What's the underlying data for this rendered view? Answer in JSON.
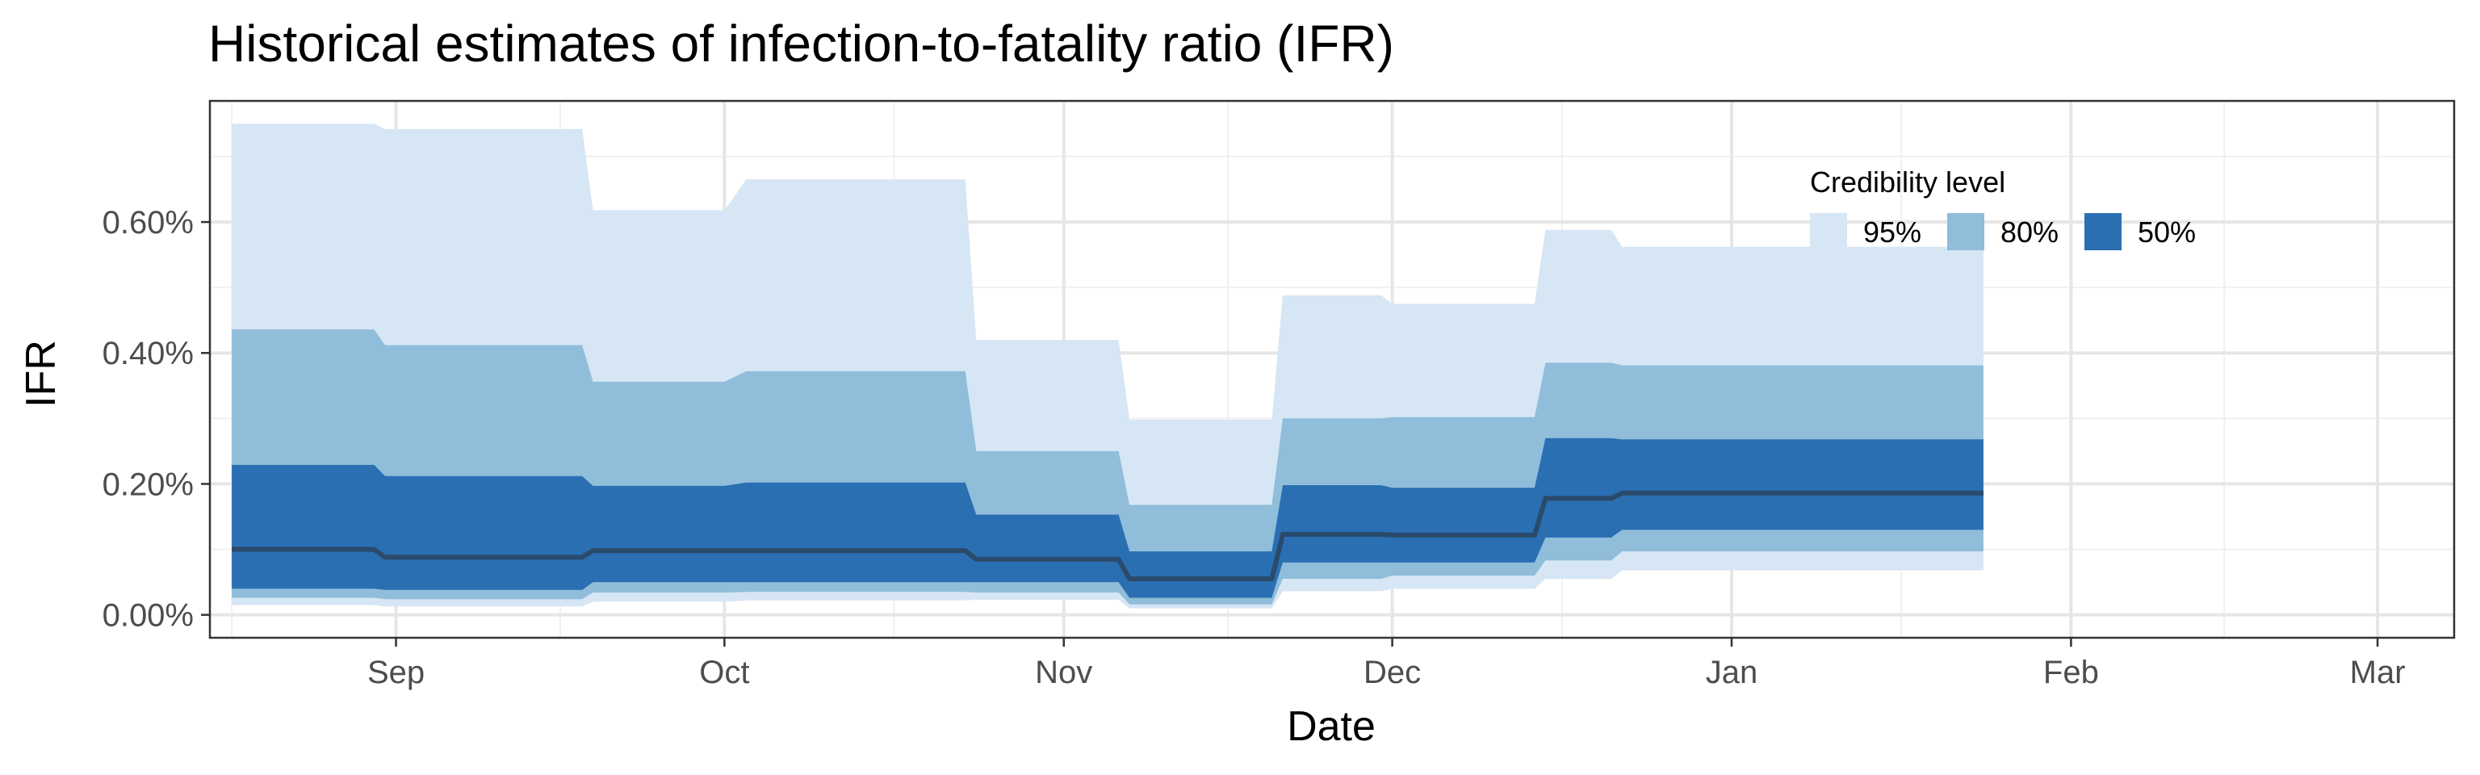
{
  "chart_data": {
    "type": "area",
    "title": "Historical estimates of infection-to-fatality ratio (IFR)",
    "xlabel": "Date",
    "ylabel": "IFR",
    "x_ticks": [
      {
        "date": "2020-09-01",
        "label": "Sep"
      },
      {
        "date": "2020-10-01",
        "label": "Oct"
      },
      {
        "date": "2020-11-01",
        "label": "Nov"
      },
      {
        "date": "2020-12-01",
        "label": "Dec"
      },
      {
        "date": "2021-01-01",
        "label": "Jan"
      },
      {
        "date": "2021-02-01",
        "label": "Feb"
      },
      {
        "date": "2021-03-01",
        "label": "Mar"
      }
    ],
    "y_ticks": [
      {
        "value": 0.0,
        "label": "0.00%"
      },
      {
        "value": 0.2,
        "label": "0.20%"
      },
      {
        "value": 0.4,
        "label": "0.40%"
      },
      {
        "value": 0.6,
        "label": "0.60%"
      }
    ],
    "xlim": [
      "2020-08-15",
      "2021-03-08"
    ],
    "ylim": [
      -0.035,
      0.785
    ],
    "y_unit": "%",
    "grid": true,
    "legend": {
      "title": "Credibility level",
      "position": "top-right",
      "items": [
        {
          "label": "95%",
          "color": "#d6e6f5"
        },
        {
          "label": "80%",
          "color": "#90bdda"
        },
        {
          "label": "50%",
          "color": "#2a6fb2"
        }
      ]
    },
    "colors": {
      "median_line": "#2b4a6b"
    },
    "x": [
      "2020-08-17",
      "2020-08-30",
      "2020-08-31",
      "2020-09-18",
      "2020-09-19",
      "2020-10-01",
      "2020-10-03",
      "2020-10-23",
      "2020-10-24",
      "2020-11-06",
      "2020-11-07",
      "2020-11-20",
      "2020-11-21",
      "2020-11-30",
      "2020-12-01",
      "2020-12-14",
      "2020-12-15",
      "2020-12-21",
      "2020-12-22",
      "2021-01-24"
    ],
    "series": [
      {
        "name": "95%",
        "lower": [
          0.015,
          0.015,
          0.013,
          0.013,
          0.02,
          0.02,
          0.022,
          0.022,
          0.023,
          0.023,
          0.01,
          0.01,
          0.036,
          0.036,
          0.04,
          0.04,
          0.055,
          0.055,
          0.068,
          0.068
        ],
        "upper": [
          0.75,
          0.75,
          0.742,
          0.742,
          0.618,
          0.618,
          0.665,
          0.665,
          0.42,
          0.42,
          0.298,
          0.298,
          0.488,
          0.488,
          0.475,
          0.475,
          0.588,
          0.588,
          0.562,
          0.562
        ]
      },
      {
        "name": "80%",
        "lower": [
          0.026,
          0.026,
          0.024,
          0.024,
          0.034,
          0.034,
          0.035,
          0.035,
          0.034,
          0.034,
          0.016,
          0.016,
          0.055,
          0.055,
          0.06,
          0.06,
          0.083,
          0.083,
          0.097,
          0.097
        ],
        "upper": [
          0.436,
          0.436,
          0.412,
          0.412,
          0.356,
          0.356,
          0.372,
          0.372,
          0.25,
          0.25,
          0.168,
          0.168,
          0.3,
          0.3,
          0.302,
          0.302,
          0.385,
          0.385,
          0.381,
          0.381
        ]
      },
      {
        "name": "50%",
        "lower": [
          0.04,
          0.04,
          0.038,
          0.038,
          0.05,
          0.05,
          0.05,
          0.05,
          0.05,
          0.05,
          0.026,
          0.026,
          0.08,
          0.08,
          0.08,
          0.08,
          0.118,
          0.118,
          0.13,
          0.13
        ],
        "upper": [
          0.229,
          0.229,
          0.212,
          0.212,
          0.197,
          0.197,
          0.202,
          0.202,
          0.153,
          0.153,
          0.097,
          0.097,
          0.198,
          0.198,
          0.194,
          0.194,
          0.27,
          0.27,
          0.268,
          0.268
        ]
      },
      {
        "name": "median",
        "values": [
          0.1,
          0.1,
          0.088,
          0.088,
          0.098,
          0.098,
          0.098,
          0.098,
          0.085,
          0.085,
          0.055,
          0.055,
          0.123,
          0.123,
          0.122,
          0.122,
          0.178,
          0.178,
          0.186,
          0.186
        ]
      }
    ]
  }
}
